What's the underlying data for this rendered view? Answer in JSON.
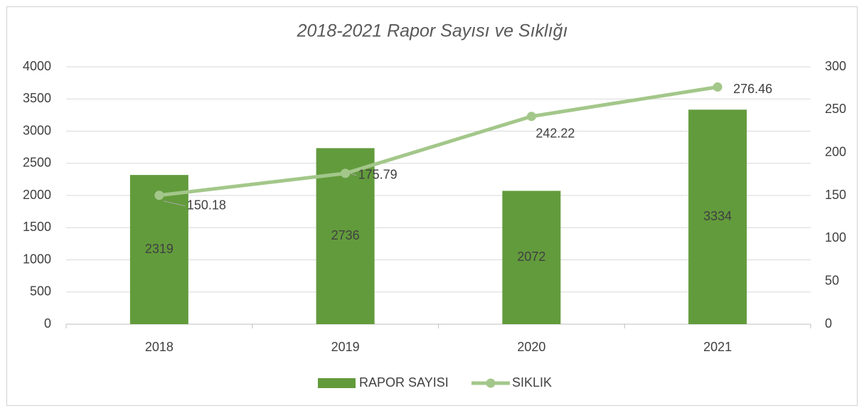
{
  "chart_data": {
    "type": "combo",
    "title": "2018-2021 Rapor Sayısı ve Sıklığı",
    "categories": [
      "2018",
      "2019",
      "2020",
      "2021"
    ],
    "series": [
      {
        "name": "RAPOR SAYISI",
        "type": "bar",
        "color": "#629b3c",
        "values": [
          2319,
          2736,
          2072,
          3334
        ]
      },
      {
        "name": "SIKLIK",
        "type": "line",
        "axis": "y2",
        "color": "#a3c78a",
        "values": [
          150.18,
          175.79,
          242.22,
          276.46
        ]
      }
    ],
    "ylim": [
      0,
      4000
    ],
    "yticks": [
      0,
      500,
      1000,
      1500,
      2000,
      2500,
      3000,
      3500,
      4000
    ],
    "y2lim": [
      0,
      300
    ],
    "y2ticks": [
      0,
      50,
      100,
      150,
      200,
      250,
      300
    ],
    "grid": true,
    "legend": "bottom"
  }
}
